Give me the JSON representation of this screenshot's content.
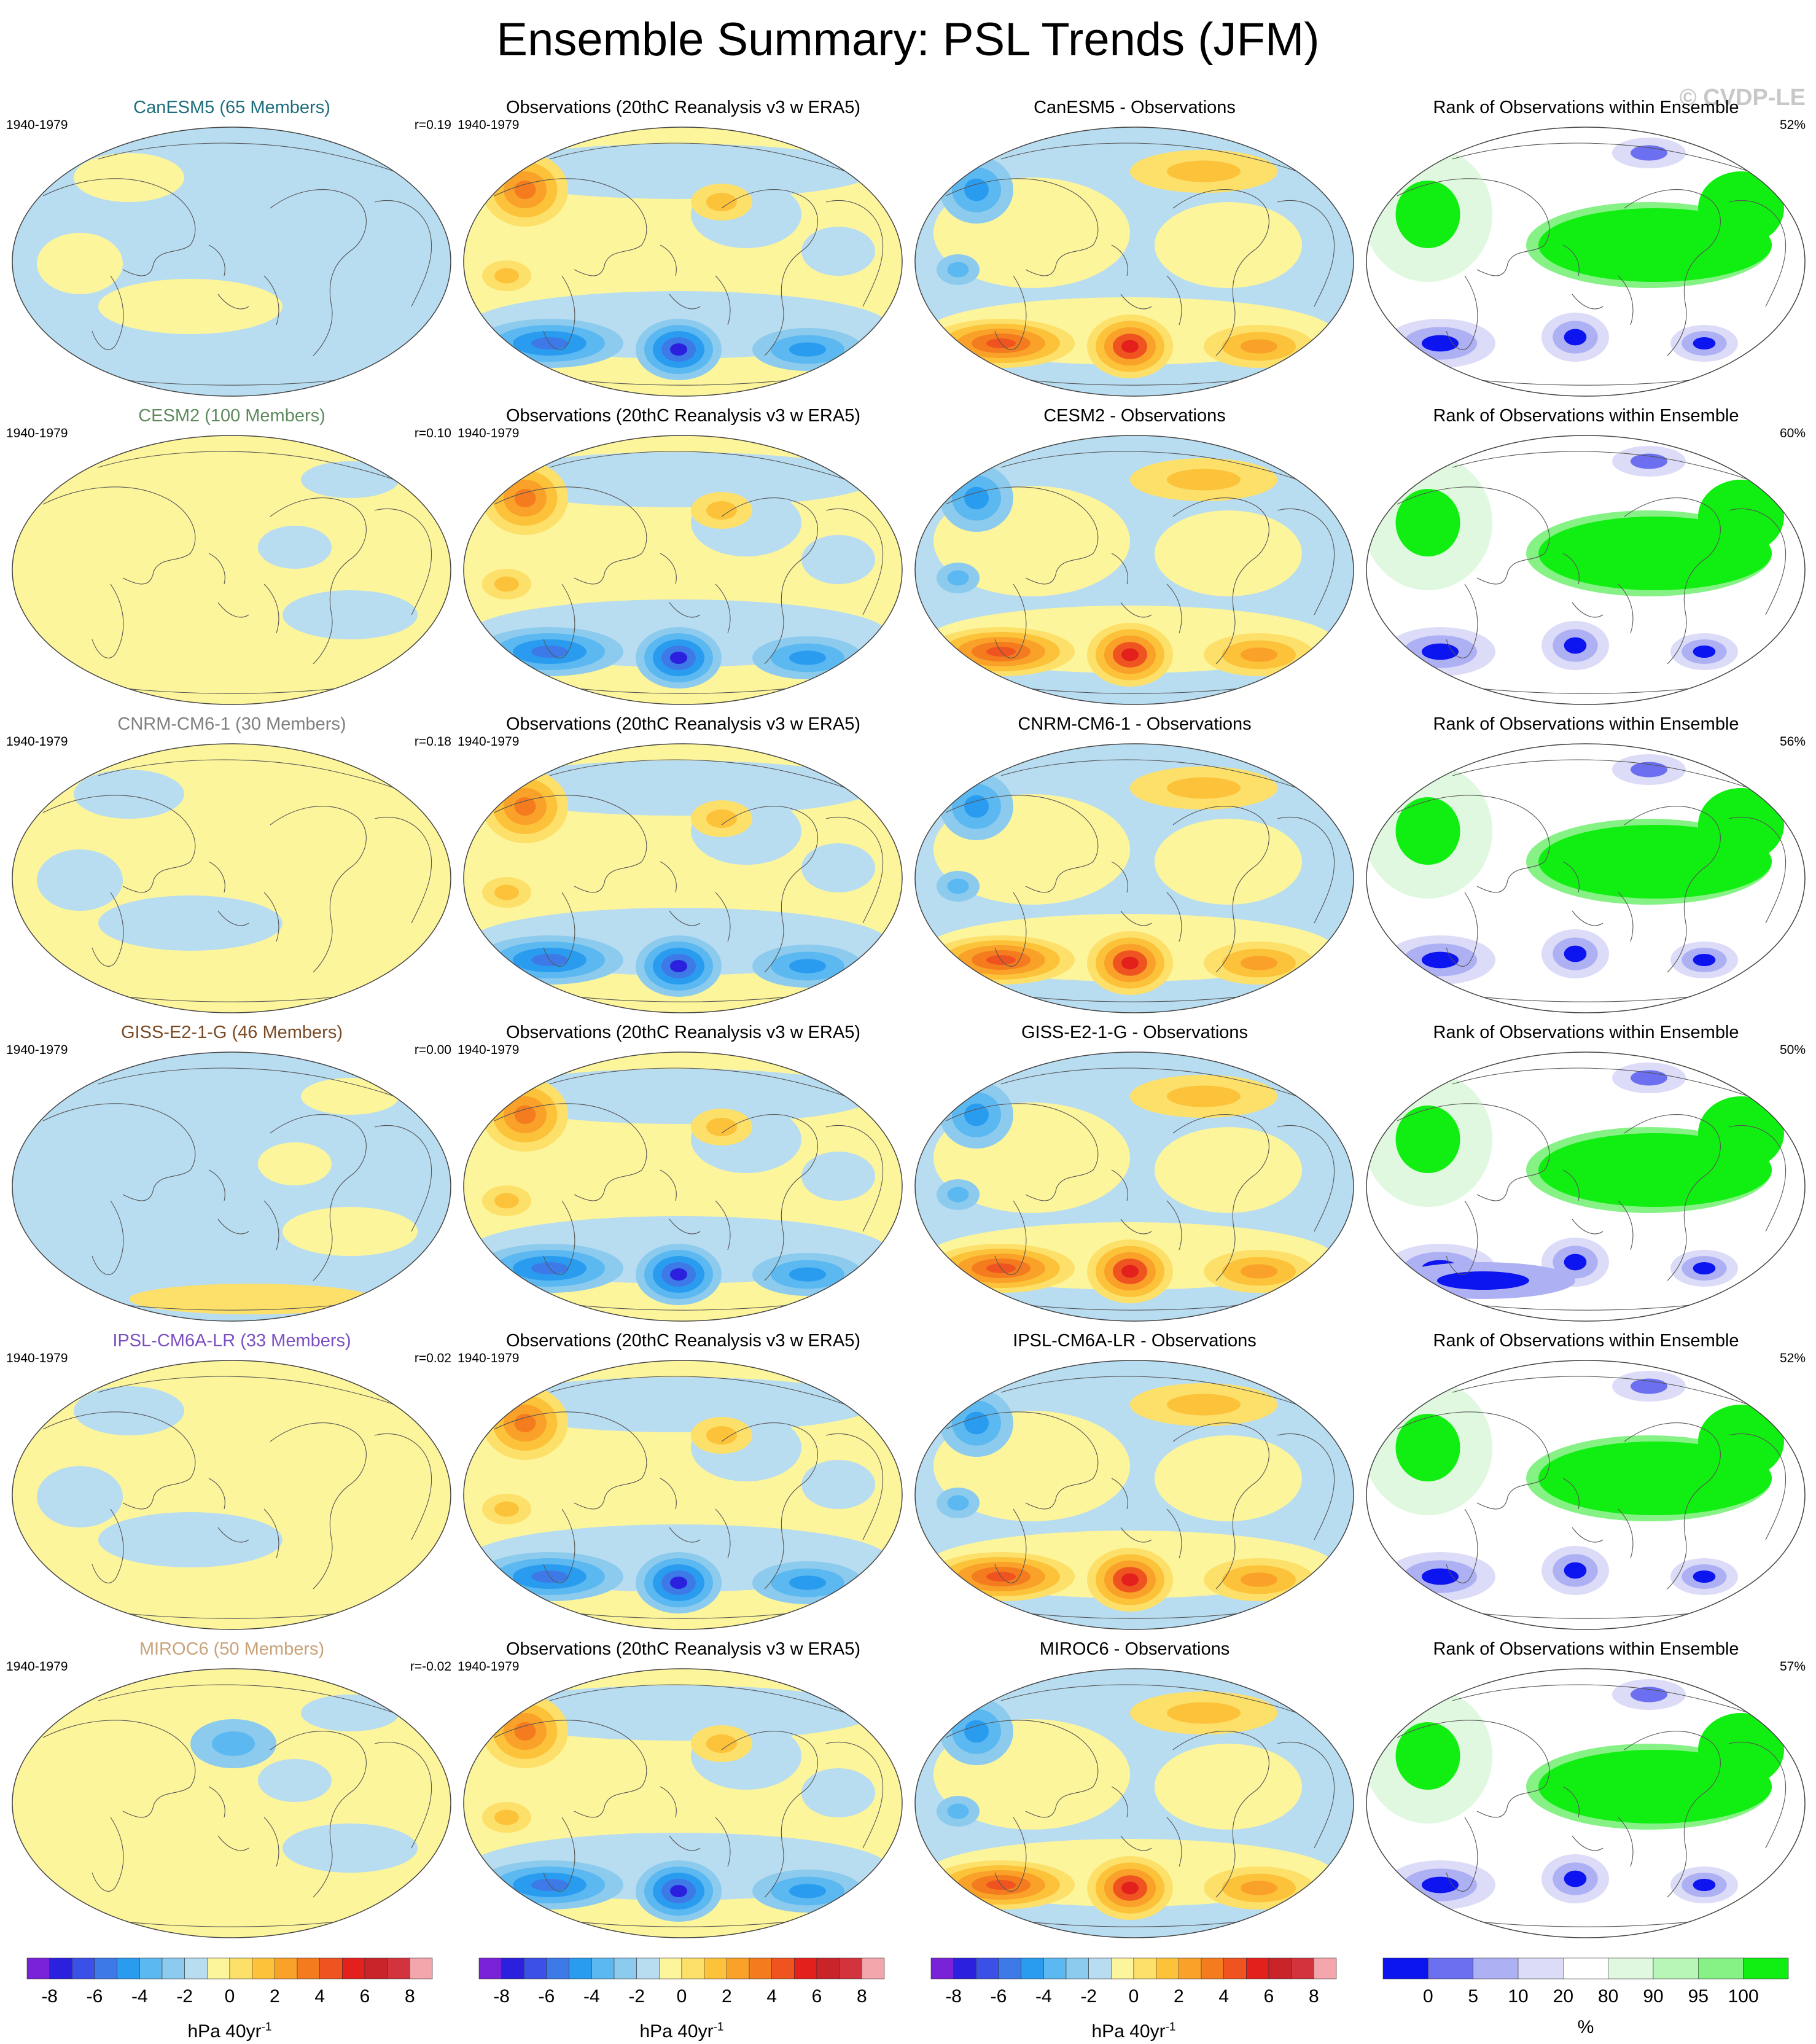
{
  "title": "Ensemble Summary: PSL Trends (JFM)",
  "watermark": "© CVDP-LE",
  "rows": [
    {
      "model": {
        "title": "CanESM5 (65 Members)",
        "title_color": "#1f6e7e",
        "period": "1940-1979",
        "pattern_corr": "r=0.19"
      },
      "observations": {
        "title": "Observations (20thC Reanalysis v3 w ERA5)",
        "period": "1940-1979"
      },
      "difference": {
        "title": "CanESM5 - Observations"
      },
      "rank": {
        "title": "Rank of Observations within Ensemble",
        "percent": "52%"
      }
    },
    {
      "model": {
        "title": "CESM2 (100 Members)",
        "title_color": "#5e8a5e",
        "period": "1940-1979",
        "pattern_corr": "r=0.10"
      },
      "observations": {
        "title": "Observations (20thC Reanalysis v3 w ERA5)",
        "period": "1940-1979"
      },
      "difference": {
        "title": "CESM2 - Observations"
      },
      "rank": {
        "title": "Rank of Observations within Ensemble",
        "percent": "60%"
      }
    },
    {
      "model": {
        "title": "CNRM-CM6-1 (30 Members)",
        "title_color": "#7f7f7f",
        "period": "1940-1979",
        "pattern_corr": "r=0.18"
      },
      "observations": {
        "title": "Observations (20thC Reanalysis v3 w ERA5)",
        "period": "1940-1979"
      },
      "difference": {
        "title": "CNRM-CM6-1 - Observations"
      },
      "rank": {
        "title": "Rank of Observations within Ensemble",
        "percent": "56%"
      }
    },
    {
      "model": {
        "title": "GISS-E2-1-G (46 Members)",
        "title_color": "#7a4a25",
        "period": "1940-1979",
        "pattern_corr": "r=0.00"
      },
      "observations": {
        "title": "Observations (20thC Reanalysis v3 w ERA5)",
        "period": "1940-1979"
      },
      "difference": {
        "title": "GISS-E2-1-G - Observations"
      },
      "rank": {
        "title": "Rank of Observations within Ensemble",
        "percent": "50%"
      }
    },
    {
      "model": {
        "title": "IPSL-CM6A-LR (33 Members)",
        "title_color": "#7b4fc4",
        "period": "1940-1979",
        "pattern_corr": "r=0.02"
      },
      "observations": {
        "title": "Observations (20thC Reanalysis v3 w ERA5)",
        "period": "1940-1979"
      },
      "difference": {
        "title": "IPSL-CM6A-LR - Observations"
      },
      "rank": {
        "title": "Rank of Observations within Ensemble",
        "percent": "52%"
      }
    },
    {
      "model": {
        "title": "MIROC6 (50 Members)",
        "title_color": "#c9a27a",
        "period": "1940-1979",
        "pattern_corr": "r=-0.02"
      },
      "observations": {
        "title": "Observations (20thC Reanalysis v3 w ERA5)",
        "period": "1940-1979"
      },
      "difference": {
        "title": "MIROC6 - Observations"
      },
      "rank": {
        "title": "Rank of Observations within Ensemble",
        "percent": "57%"
      }
    }
  ],
  "trend_colorbar": {
    "units": "hPa 40yr",
    "units_exponent": "-1",
    "ticks": [
      "-8",
      "-6",
      "-4",
      "-2",
      "0",
      "2",
      "4",
      "6",
      "8"
    ],
    "colors": [
      "#7a22d8",
      "#2b20de",
      "#3a50e6",
      "#3d7ae8",
      "#2a9cf0",
      "#5bb8f0",
      "#8ccbee",
      "#b8dcf0",
      "#fdf59c",
      "#fde06a",
      "#fcc23a",
      "#f9a128",
      "#f47c1e",
      "#ef5420",
      "#e4201d",
      "#c8242a",
      "#d2333c",
      "#f4a6ad"
    ]
  },
  "rank_colorbar": {
    "units": "%",
    "ticks": [
      "0",
      "5",
      "10",
      "20",
      "80",
      "90",
      "95",
      "100"
    ],
    "colors": [
      "#0c14f0",
      "#6b6ff0",
      "#aeb0f4",
      "#dcdcf8",
      "#ffffff",
      "#dff8df",
      "#b8f6b8",
      "#86f286",
      "#11ee11"
    ]
  }
}
